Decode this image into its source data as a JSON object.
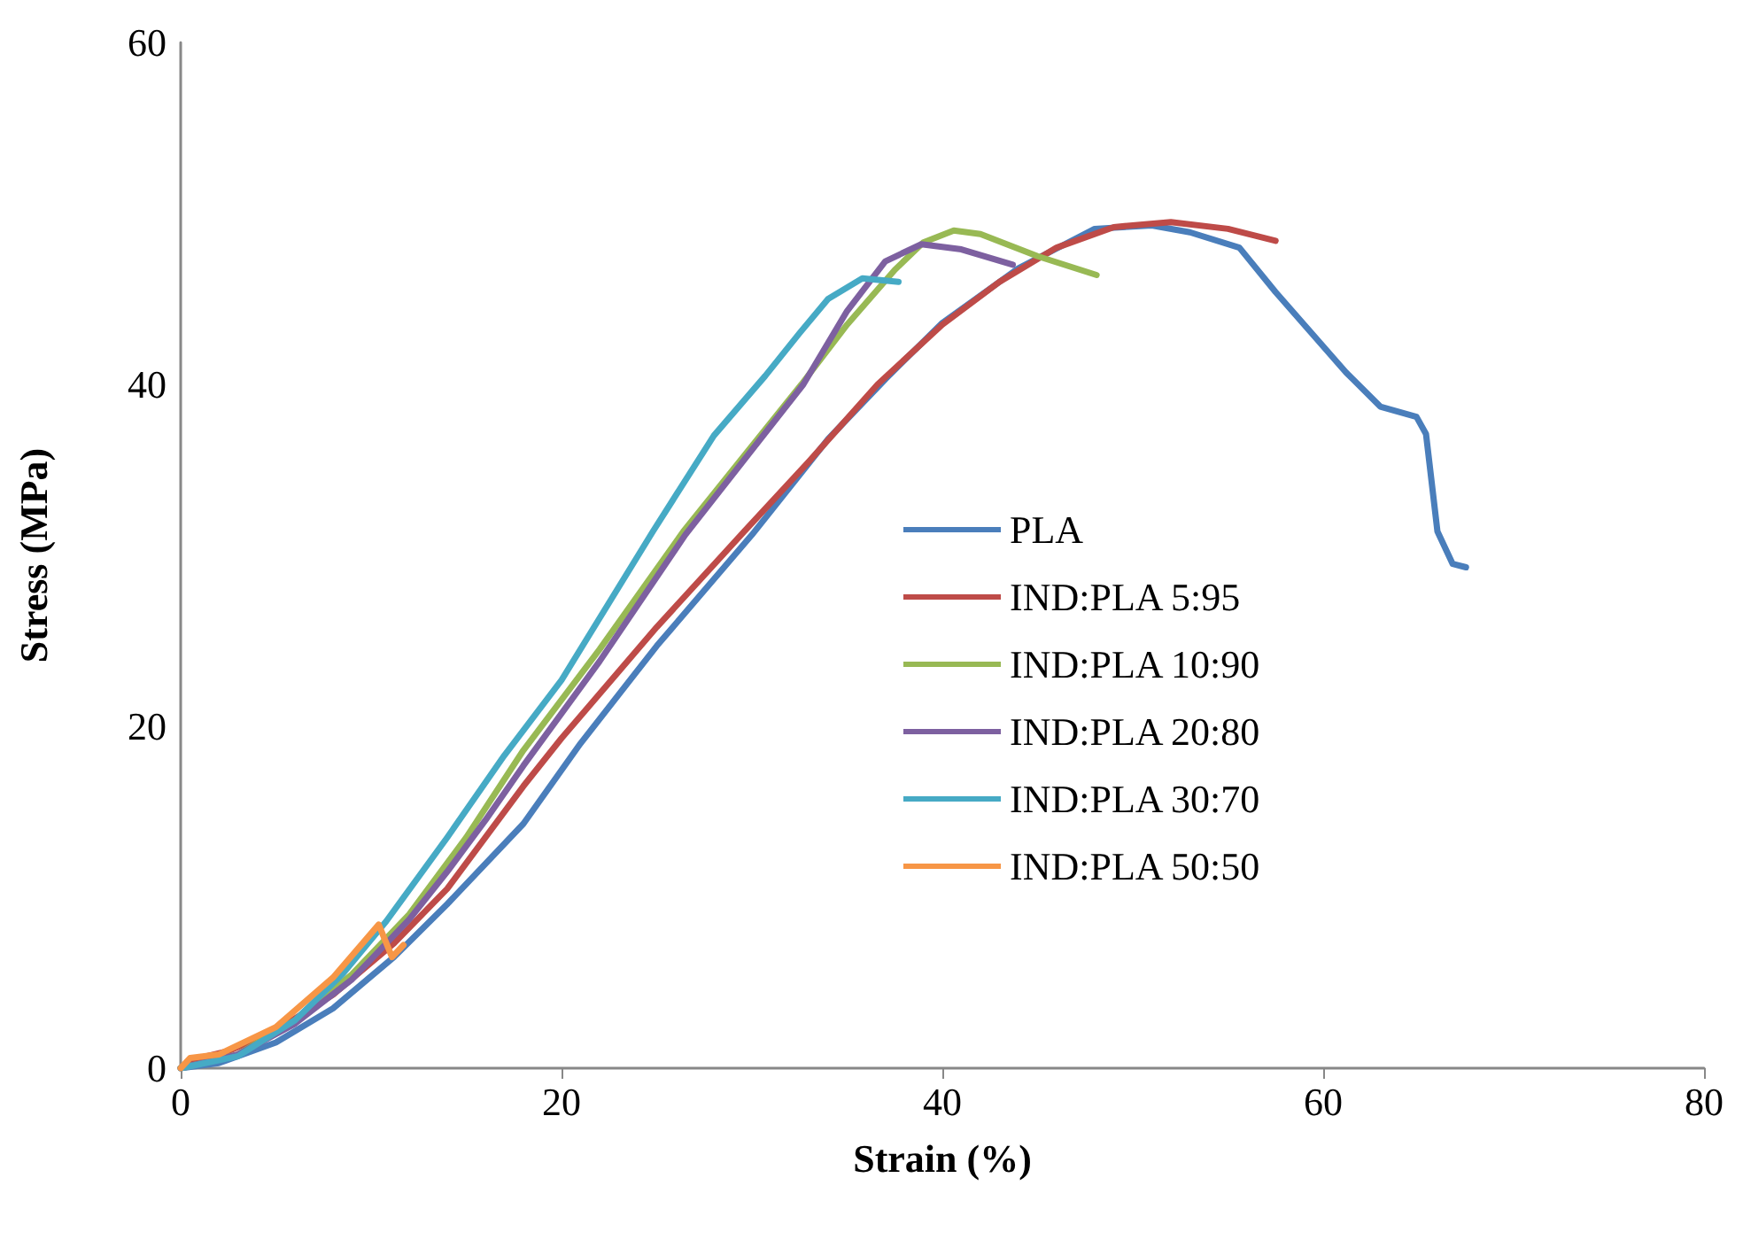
{
  "chart_data": {
    "type": "line",
    "xlabel": "Strain (%)",
    "ylabel": "Stress (MPa)",
    "xlim": [
      0,
      80
    ],
    "xticks": [
      0,
      20,
      40,
      60,
      80
    ],
    "ylim": [
      0,
      60
    ],
    "yticks": [
      0,
      20,
      40,
      60
    ],
    "grid": false,
    "legend": "right",
    "marker": "none",
    "line_style": "solid",
    "series": [
      {
        "name": "PLA",
        "color": "#4a7ebb",
        "x": [
          0,
          2,
          5,
          8,
          11.2,
          14,
          18,
          21,
          25,
          30,
          34,
          37,
          40,
          44,
          48,
          51,
          53,
          55.6,
          57.5,
          61.2,
          63,
          64.9,
          65.4,
          66,
          66.8,
          67.5
        ],
        "values": [
          0,
          0.3,
          1.5,
          3.5,
          6.5,
          9.6,
          14.3,
          19,
          24.7,
          31.2,
          36.8,
          40.3,
          43.6,
          46.8,
          49.1,
          49.3,
          48.9,
          48,
          45.4,
          40.7,
          38.7,
          38.1,
          37.1,
          31.4,
          29.5,
          29.3
        ]
      },
      {
        "name": "IND:PLA 5:95",
        "color": "#be4b48",
        "x": [
          0,
          1,
          2.5,
          5,
          8,
          11.2,
          14,
          18,
          20,
          25,
          29.6,
          33,
          36.6,
          40,
          43,
          46,
          49,
          52,
          55,
          57.5
        ],
        "values": [
          0,
          0.6,
          1,
          2.2,
          4.3,
          7.3,
          10.5,
          16.5,
          19.3,
          25.8,
          31.4,
          35.5,
          40,
          43.5,
          46,
          48,
          49.2,
          49.5,
          49.1,
          48.4
        ]
      },
      {
        "name": "IND:PLA 10:90",
        "color": "#98b954",
        "x": [
          0,
          3,
          6,
          9,
          12,
          15,
          18,
          22,
          26.4,
          32.6,
          35,
          37.5,
          39,
          40.6,
          42,
          45,
          48.1
        ],
        "values": [
          0,
          0.8,
          2.8,
          5.5,
          9,
          13.5,
          18.6,
          24.5,
          31.4,
          40,
          43.5,
          46.7,
          48.3,
          49,
          48.8,
          47.5,
          46.4
        ]
      },
      {
        "name": "IND:PLA 20:80",
        "color": "#7d60a0",
        "x": [
          0,
          3,
          6,
          9,
          12,
          14,
          16,
          18,
          22,
          26.5,
          32.7,
          35,
          37,
          38.9,
          41,
          43.7
        ],
        "values": [
          0,
          0.8,
          2.6,
          5.2,
          8.7,
          11.5,
          14.5,
          17.7,
          23.8,
          31.2,
          40,
          44.3,
          47.2,
          48.2,
          47.9,
          47
        ]
      },
      {
        "name": "IND:PLA 30:70",
        "color": "#46aac5",
        "x": [
          0,
          3,
          6,
          8.5,
          10.8,
          14,
          17,
          20,
          24.8,
          28,
          30.7,
          32.5,
          34,
          35.8,
          37.7
        ],
        "values": [
          0,
          0.7,
          2.8,
          5.5,
          8.6,
          13.5,
          18.3,
          22.7,
          31.4,
          37,
          40.5,
          43,
          45,
          46.2,
          46
        ]
      },
      {
        "name": "IND:PLA 50:50",
        "color": "#f79646",
        "x": [
          0,
          0.5,
          2,
          5,
          8,
          10.4,
          11.1,
          11.7
        ],
        "values": [
          0,
          0.6,
          0.8,
          2.4,
          5.3,
          8.4,
          6.5,
          7.2
        ]
      }
    ]
  }
}
